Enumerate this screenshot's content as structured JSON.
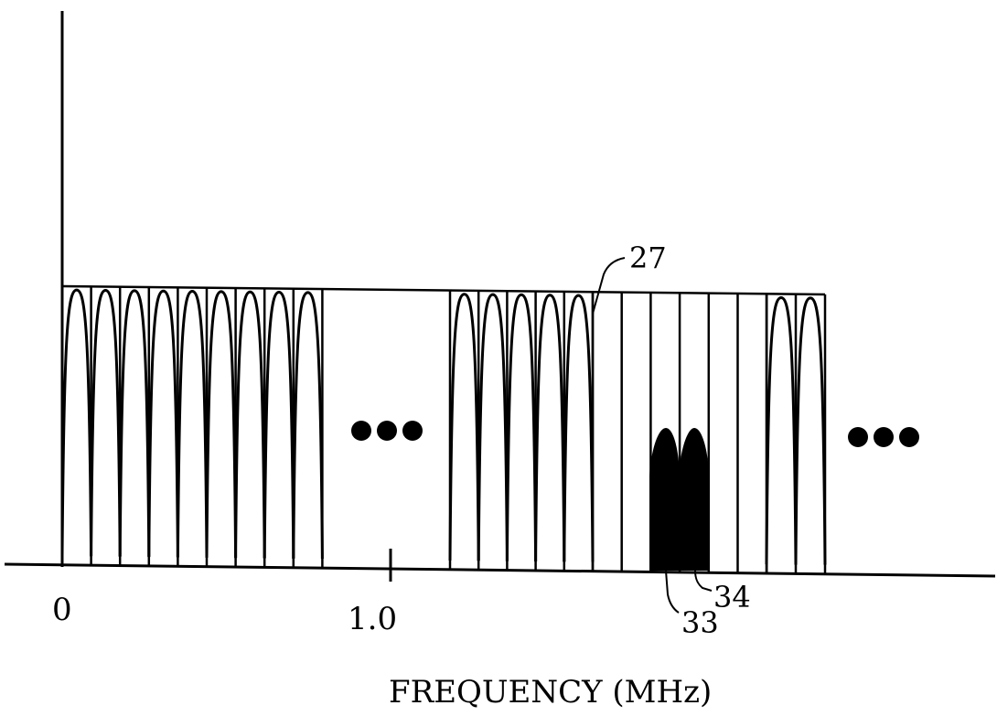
{
  "figure": {
    "x_axis_label": "FREQUENCY (MHz)",
    "x_ticks": [
      "0",
      "1.0"
    ],
    "reference_numerals": {
      "envelope": "27",
      "shaded_subchannel_left": "33",
      "shaded_subchannel_right": "34"
    },
    "ellipsis_count": 2,
    "colors": {
      "stroke": "#000000",
      "background": "#ffffff"
    },
    "channel_groups": [
      {
        "name": "group-1",
        "subchannels": 9,
        "channels_start": 0
      },
      {
        "name": "group-2",
        "subchannels": 5,
        "channels_start": 1.19
      },
      {
        "name": "group-3",
        "subchannels": 2,
        "channels_start": 2.14
      }
    ]
  }
}
